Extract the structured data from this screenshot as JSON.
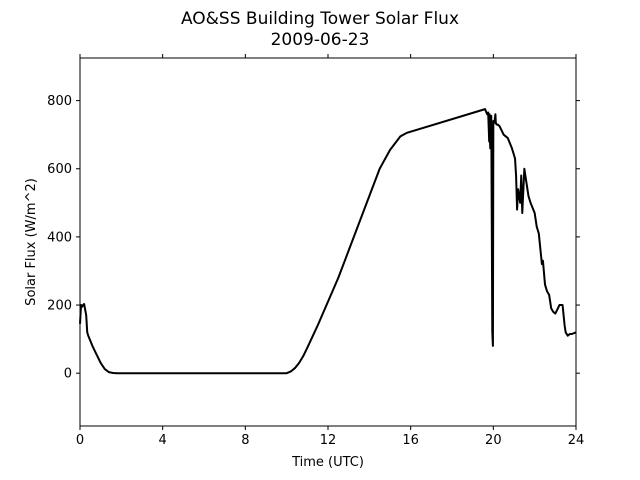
{
  "chart_data": {
    "type": "line",
    "title": "AO&SS Building Tower Solar Flux",
    "subtitle": "2009-06-23",
    "xlabel": "Time (UTC)",
    "ylabel": "Solar Flux (W/m^2)",
    "xlim": [
      0,
      24
    ],
    "ylim": [
      -155,
      925
    ],
    "xticks": [
      0,
      4,
      8,
      12,
      16,
      20,
      24
    ],
    "yticks": [
      0,
      200,
      400,
      600,
      800
    ],
    "grid": false,
    "legend": "none",
    "line_color": "#000000",
    "series": [
      {
        "x": [
          0.0,
          0.05,
          0.1,
          0.15,
          0.2,
          0.3,
          0.35,
          0.4,
          0.5,
          0.6,
          0.8,
          1.0,
          1.2,
          1.4,
          1.6,
          1.8,
          2.0,
          2.2,
          2.5,
          3.0,
          4.0,
          6.0,
          8.0,
          9.5,
          10.0,
          10.2,
          10.4,
          10.6,
          10.8,
          11.0,
          11.5,
          12.0,
          12.5,
          13.0,
          13.5,
          14.0,
          14.5,
          15.0,
          15.5,
          15.8,
          19.6,
          19.7,
          19.75,
          19.8,
          19.82,
          19.85,
          19.9,
          19.95,
          19.98,
          20.0,
          20.05,
          20.1,
          20.12,
          20.15,
          20.2,
          20.3,
          20.5,
          20.7,
          20.9,
          21.0,
          21.05,
          21.1,
          21.15,
          21.2,
          21.3,
          21.35,
          21.4,
          21.5,
          21.6,
          21.7,
          21.8,
          22.0,
          22.1,
          22.2,
          22.3,
          22.35,
          22.4,
          22.5,
          22.6,
          22.7,
          22.8,
          22.9,
          23.0,
          23.2,
          23.35,
          23.45,
          23.5,
          23.6,
          23.7,
          23.8,
          24.0
        ],
        "y": [
          145,
          200,
          195,
          200,
          203,
          170,
          120,
          110,
          95,
          80,
          55,
          30,
          12,
          3,
          0.5,
          0,
          0,
          0,
          0,
          0,
          0,
          0,
          0,
          0,
          0,
          5,
          15,
          30,
          50,
          75,
          140,
          210,
          280,
          360,
          440,
          520,
          600,
          655,
          695,
          705,
          775,
          760,
          765,
          680,
          760,
          660,
          755,
          120,
          80,
          740,
          735,
          760,
          735,
          730,
          730,
          725,
          700,
          690,
          660,
          640,
          630,
          580,
          480,
          540,
          500,
          580,
          470,
          600,
          560,
          520,
          500,
          470,
          430,
          410,
          350,
          320,
          330,
          260,
          240,
          230,
          190,
          180,
          175,
          200,
          200,
          140,
          120,
          110,
          115,
          115,
          120
        ]
      }
    ]
  }
}
